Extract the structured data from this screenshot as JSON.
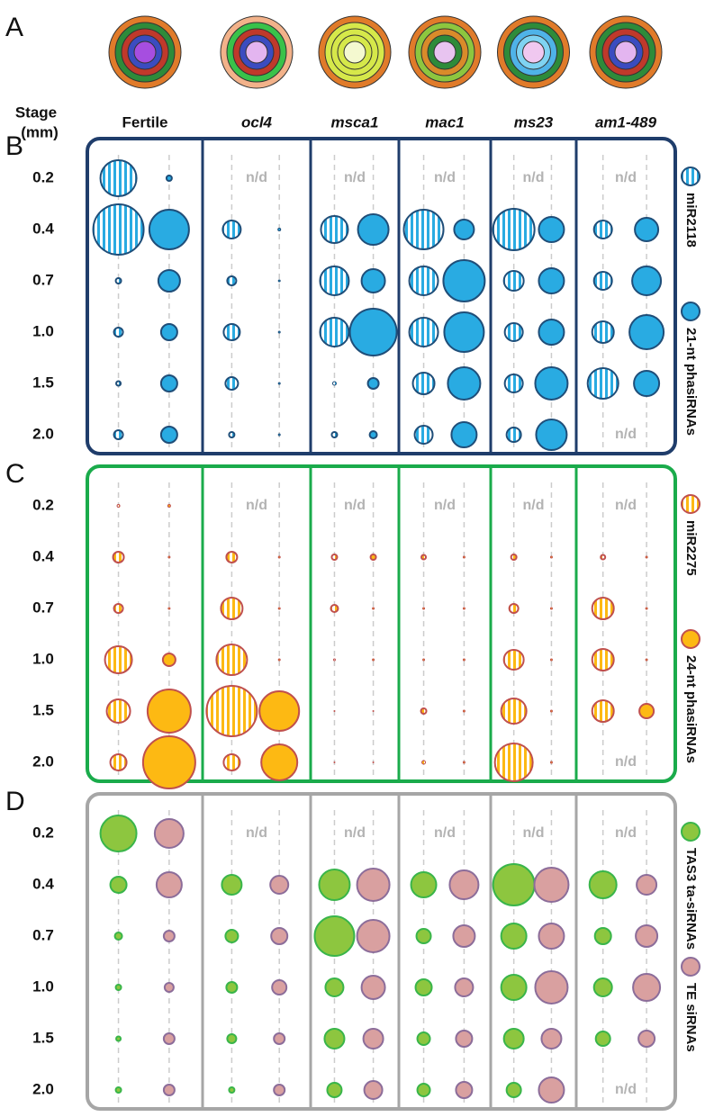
{
  "panel_a_label": "A",
  "stage_title": [
    "Stage",
    "(mm)"
  ],
  "nd_label": "n/d",
  "genotypes": [
    {
      "label": "Fertile",
      "italic": false
    },
    {
      "label": "ocl4",
      "italic": true
    },
    {
      "label": "msca1",
      "italic": true
    },
    {
      "label": "mac1",
      "italic": true
    },
    {
      "label": "ms23",
      "italic": true
    },
    {
      "label": "am1-489",
      "italic": true
    }
  ],
  "chart_data": [
    {
      "type": "bubble",
      "label": "B",
      "frame_color": "#1f3d6b",
      "categories": [
        "0.2",
        "0.4",
        "0.7",
        "1.0",
        "1.5",
        "2.0"
      ],
      "series": [
        {
          "name": "miR2118",
          "color": "#29abe2",
          "edge_color": "#1f4e79",
          "pattern": "striped",
          "values": [
            [
              40,
              56,
              6,
              10,
              5,
              10
            ],
            [
              null,
              20,
              10,
              18,
              14,
              6
            ],
            [
              null,
              30,
              32,
              32,
              4,
              6
            ],
            [
              null,
              44,
              32,
              32,
              24,
              20
            ],
            [
              null,
              46,
              22,
              20,
              20,
              16
            ],
            [
              null,
              20,
              20,
              24,
              34,
              null
            ]
          ]
        },
        {
          "name": "21-nt phasiRNAs",
          "color": "#29abe2",
          "edge_color": "#1f4e79",
          "pattern": "solid",
          "values": [
            [
              6,
              44,
              24,
              18,
              18,
              18
            ],
            [
              null,
              3,
              2,
              2,
              2,
              2
            ],
            [
              null,
              34,
              26,
              52,
              12,
              8
            ],
            [
              null,
              22,
              46,
              44,
              36,
              28
            ],
            [
              null,
              28,
              28,
              28,
              36,
              34
            ],
            [
              null,
              26,
              32,
              38,
              28,
              null
            ]
          ]
        }
      ]
    },
    {
      "type": "bubble",
      "label": "C",
      "frame_color": "#1aab4b",
      "categories": [
        "0.2",
        "0.4",
        "0.7",
        "1.0",
        "1.5",
        "2.0"
      ],
      "series": [
        {
          "name": "miR2275",
          "color": "#fdb913",
          "edge_color": "#c0504d",
          "pattern": "striped",
          "values": [
            [
              3,
              12,
              10,
              30,
              26,
              18
            ],
            [
              null,
              12,
              24,
              34,
              56,
              18
            ],
            [
              null,
              6,
              8,
              2,
              1,
              1
            ],
            [
              null,
              5,
              2,
              2,
              6,
              4
            ],
            [
              null,
              6,
              10,
              22,
              28,
              42
            ],
            [
              null,
              5,
              24,
              24,
              24,
              null
            ]
          ]
        },
        {
          "name": "24-nt phasiRNAs",
          "color": "#fdb913",
          "edge_color": "#c0504d",
          "pattern": "solid",
          "values": [
            [
              3,
              2,
              2,
              14,
              48,
              58
            ],
            [
              null,
              2,
              2,
              2,
              44,
              40
            ],
            [
              null,
              6,
              2,
              2,
              1,
              1
            ],
            [
              null,
              2,
              2,
              2,
              2,
              2
            ],
            [
              null,
              2,
              2,
              2,
              2,
              2
            ],
            [
              null,
              2,
              2,
              2,
              16,
              null
            ]
          ]
        }
      ]
    },
    {
      "type": "bubble",
      "label": "D",
      "frame_color": "#a6a6a6",
      "categories": [
        "0.2",
        "0.4",
        "0.7",
        "1.0",
        "1.5",
        "2.0"
      ],
      "series": [
        {
          "name": "TAS3 ta-siRNAs",
          "color": "#8dc63f",
          "edge_color": "#39b54a",
          "pattern": "solid",
          "values": [
            [
              40,
              18,
              8,
              6,
              5,
              6
            ],
            [
              null,
              22,
              14,
              12,
              10,
              6
            ],
            [
              null,
              34,
              44,
              20,
              22,
              16
            ],
            [
              null,
              28,
              16,
              18,
              14,
              14
            ],
            [
              null,
              46,
              28,
              28,
              22,
              16
            ],
            [
              null,
              30,
              18,
              20,
              16,
              null
            ]
          ]
        },
        {
          "name": "TE siRNAs",
          "color": "#d9a0a0",
          "edge_color": "#8c6d9a",
          "pattern": "solid",
          "values": [
            [
              32,
              28,
              12,
              10,
              12,
              12
            ],
            [
              null,
              20,
              18,
              16,
              12,
              12
            ],
            [
              null,
              36,
              36,
              26,
              22,
              20
            ],
            [
              null,
              32,
              24,
              20,
              18,
              18
            ],
            [
              null,
              38,
              28,
              36,
              22,
              28
            ],
            [
              null,
              22,
              24,
              30,
              18,
              null
            ]
          ]
        }
      ]
    }
  ]
}
